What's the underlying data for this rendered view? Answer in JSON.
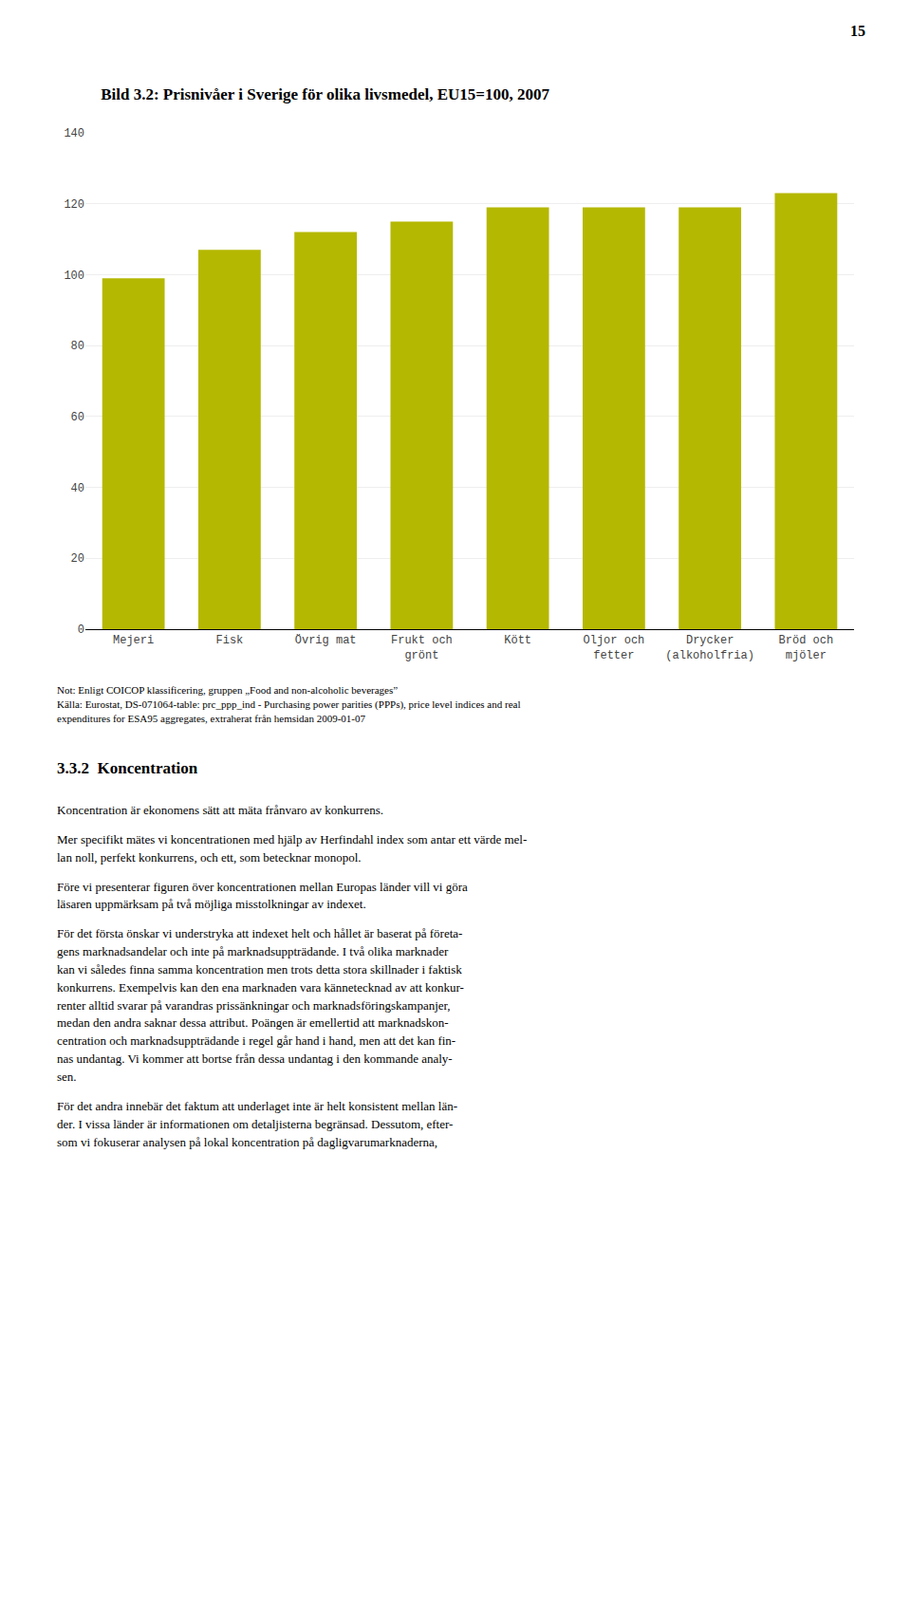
{
  "chart_data": {
    "type": "bar",
    "title": "Bild 3.2: Prisnivåer i Sverige för olika livsmedel, EU15=100, 2007",
    "categories": [
      "Mejeri",
      "Fisk",
      "Övrig mat",
      "Frukt och\ngrönt",
      "Kött",
      "Oljor och\nfetter",
      "Drycker\n(alkoholfria)",
      "Bröd och\nmjöler"
    ],
    "values": [
      99,
      107,
      112,
      115,
      119,
      119,
      119,
      123
    ],
    "color": "#b5b800",
    "ylim": [
      0,
      140
    ],
    "yticks": [
      0,
      20,
      40,
      60,
      80,
      100,
      120,
      140
    ],
    "grid": true,
    "annotations": [
      "Not: Enligt COICOP klassificering, gruppen „Food and non-alcoholic beverages”\nKälla: Eurostat, DS-071064-table: prc_ppp_ind - Purchasing power parities (PPPs), price level indices and real\nexpenditures for ESA95 aggregates, extraherat från hemsidan 2009-01-07"
    ]
  },
  "page": {
    "page_number": "15",
    "section_heading": "3.3.2  Koncentration",
    "body_paragraphs": [
      "Koncentration är ekonomens sätt att mäta frånvaro av konkurrens.",
      "Mer specifikt mätes vi koncentrationen med hjälp av Herfindahl index som antar ett värde mel-\nlan noll, perfekt konkurrens, och ett, som betecknar monopol.",
      "Före vi presenterar figuren över koncentrationen mellan Europas länder vill vi göra\nläsaren uppmärksam på två möjliga misstolkningar av indexet.",
      "För det första önskar vi understryka att indexet helt och hållet är baserat på företa-\ngens marknadsandelar och inte på marknadsuppträdande. I två olika marknader\nkan vi således finna samma koncentration men trots detta stora skillnader i faktisk\nkonkurrens. Exempelvis kan den ena marknaden vara kännetecknad av att konkur-\nrenter alltid svarar på varandras prissänkningar och marknadsföringskampanjer,\nmedan den andra saknar dessa attribut. Poängen är emellertid att marknadskon-\ncentration och marknadsuppträdande i regel går hand i hand, men att det kan fin-\nnas undantag. Vi kommer att bortse från dessa undantag i den kommande analy-\nsen.",
      "För det andra innebär det faktum att underlaget inte är helt konsistent mellan län-\nder. I vissa länder är informationen om detaljisterna begränsad. Dessutom, efter-\nsom vi fokuserar analysen på lokal koncentration på dagligvarumarknaderna,"
    ]
  }
}
